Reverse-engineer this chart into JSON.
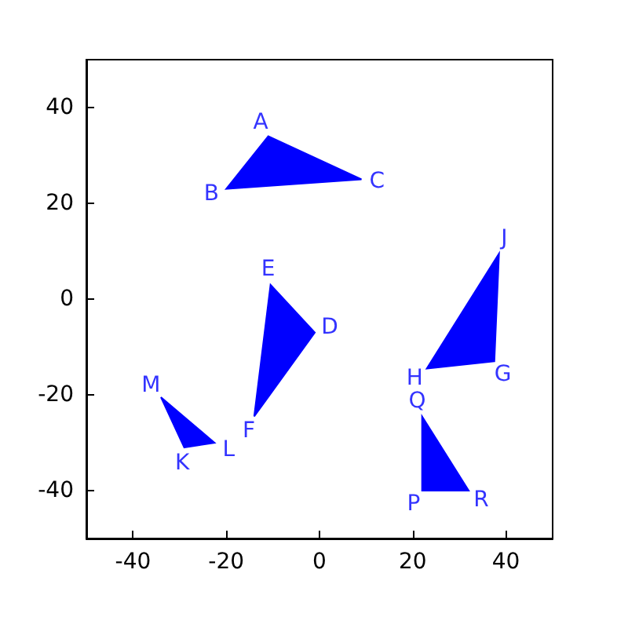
{
  "chart_data": {
    "type": "area",
    "marker": "none",
    "grid": false,
    "legend": false,
    "xlim": [
      -50,
      50
    ],
    "ylim": [
      -50,
      50
    ],
    "xticks": [
      -40,
      -20,
      0,
      20,
      40
    ],
    "yticks": [
      -40,
      -20,
      0,
      20,
      40
    ],
    "series": [
      {
        "color": "#0000ff",
        "x": [
          -11,
          -20,
          9
        ],
        "values": [
          34,
          23,
          25
        ],
        "value_labels": [
          "A",
          "B",
          "C"
        ]
      },
      {
        "color": "#0000ff",
        "x": [
          -1,
          -10.5,
          -14
        ],
        "values": [
          -7,
          3,
          -24.5
        ],
        "value_labels": [
          "D",
          "E",
          "F"
        ]
      },
      {
        "color": "#0000ff",
        "x": [
          37.5,
          23,
          38.5
        ],
        "values": [
          -13,
          -14.5,
          9.5
        ],
        "value_labels": [
          "G",
          "H",
          "J"
        ]
      },
      {
        "color": "#0000ff",
        "x": [
          -29,
          -22.5,
          -34
        ],
        "values": [
          -31,
          -30,
          -20.5
        ],
        "value_labels": [
          "K",
          "L",
          "M"
        ]
      },
      {
        "color": "#0000ff",
        "x": [
          22,
          22,
          32
        ],
        "values": [
          -40,
          -24.5,
          -40
        ],
        "value_labels": [
          "P",
          "Q",
          "R"
        ]
      }
    ]
  }
}
